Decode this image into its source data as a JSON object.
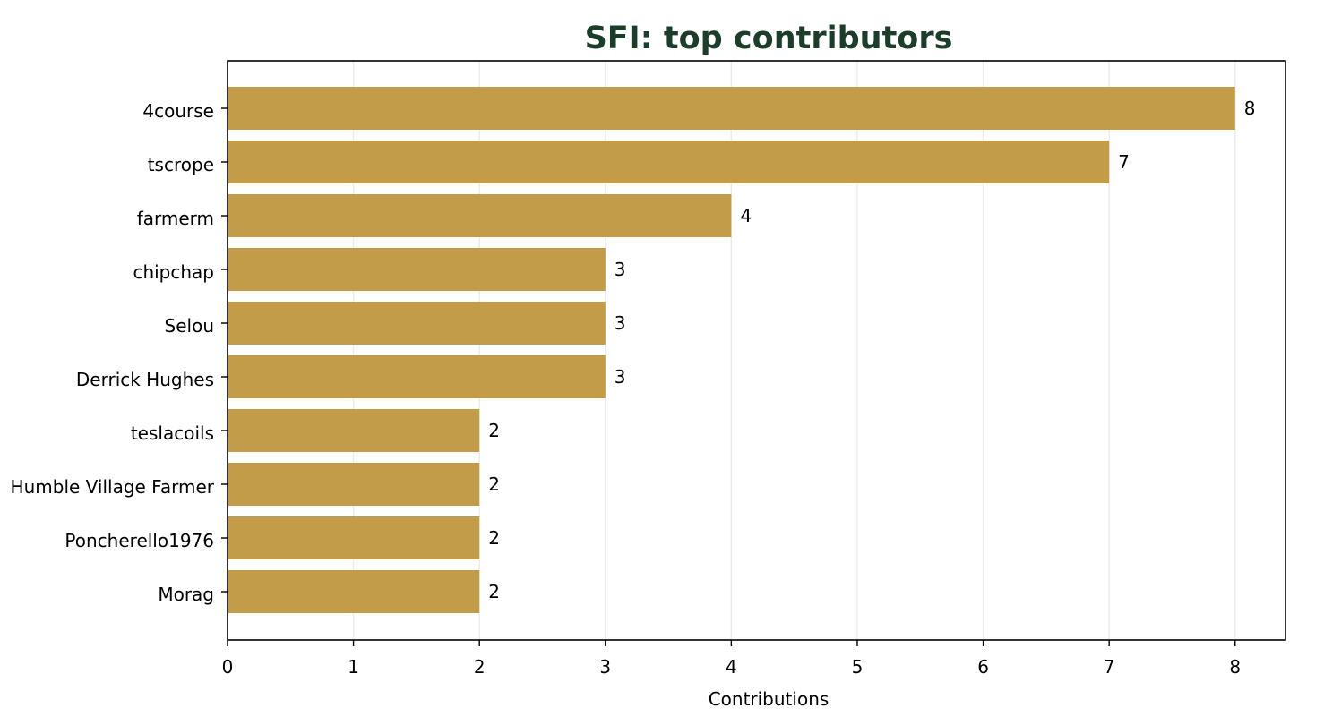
{
  "chart_data": {
    "type": "bar",
    "orientation": "horizontal",
    "title": "SFI: top contributors",
    "xlabel": "Contributions",
    "ylabel": "",
    "categories": [
      "4course",
      "tscrope",
      "farmerm",
      "chipchap",
      "Selou",
      "Derrick Hughes",
      "teslacoils",
      "Humble Village Farmer",
      "Poncherello1976",
      "Morag"
    ],
    "values": [
      8,
      7,
      4,
      3,
      3,
      3,
      2,
      2,
      2,
      2
    ],
    "xlim": [
      0,
      8.4
    ],
    "xticks": [
      0,
      1,
      2,
      3,
      4,
      5,
      6,
      7,
      8
    ],
    "grid": "vertical",
    "legend": "none",
    "colors": {
      "bar": "#c29c48",
      "title": "#1b3d2a",
      "grid": "#ebebeb"
    }
  }
}
